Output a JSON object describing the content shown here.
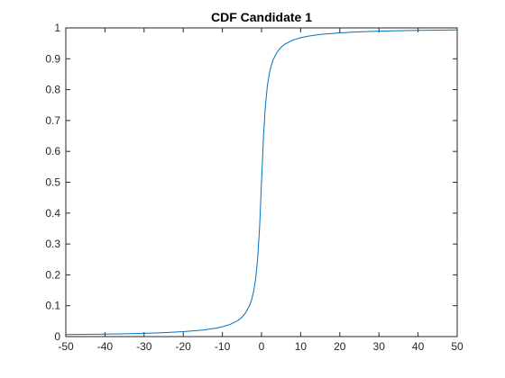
{
  "chart_data": {
    "type": "line",
    "title": "CDF Candidate 1",
    "xlabel": "",
    "ylabel": "",
    "xlim": [
      -50,
      50
    ],
    "ylim": [
      0,
      1
    ],
    "xticks": [
      -50,
      -40,
      -30,
      -20,
      -10,
      0,
      10,
      20,
      30,
      40,
      50
    ],
    "xtick_labels": [
      "-50",
      "-40",
      "-30",
      "-20",
      "-10",
      "0",
      "10",
      "20",
      "30",
      "40",
      "50"
    ],
    "yticks": [
      0,
      0.1,
      0.2,
      0.3,
      0.4,
      0.5,
      0.6,
      0.7,
      0.8,
      0.9,
      1
    ],
    "ytick_labels": [
      "0",
      "0.1",
      "0.2",
      "0.3",
      "0.4",
      "0.5",
      "0.6",
      "0.7",
      "0.8",
      "0.9",
      "1"
    ],
    "grid": false,
    "box": true,
    "series": [
      {
        "name": "CDF Candidate 1",
        "color": "#0072BD",
        "x": [
          -50,
          -45,
          -40,
          -35,
          -30,
          -25,
          -20,
          -15,
          -12,
          -10,
          -8,
          -6,
          -5,
          -4,
          -3,
          -2.5,
          -2,
          -1.5,
          -1,
          -0.5,
          0,
          0.5,
          1,
          1.5,
          2,
          2.5,
          3,
          4,
          5,
          6,
          8,
          10,
          12,
          15,
          20,
          25,
          30,
          35,
          40,
          45,
          50
        ],
        "y": [
          0.0064,
          0.0071,
          0.008,
          0.0091,
          0.0106,
          0.0127,
          0.0159,
          0.0212,
          0.0265,
          0.0317,
          0.0395,
          0.0524,
          0.0628,
          0.078,
          0.1024,
          0.1211,
          0.1476,
          0.1872,
          0.25,
          0.3524,
          0.5,
          0.6476,
          0.75,
          0.8128,
          0.8524,
          0.8789,
          0.8976,
          0.922,
          0.9372,
          0.9476,
          0.9605,
          0.9683,
          0.9735,
          0.9788,
          0.9841,
          0.9873,
          0.9894,
          0.9909,
          0.992,
          0.9929,
          0.9936
        ]
      }
    ]
  }
}
